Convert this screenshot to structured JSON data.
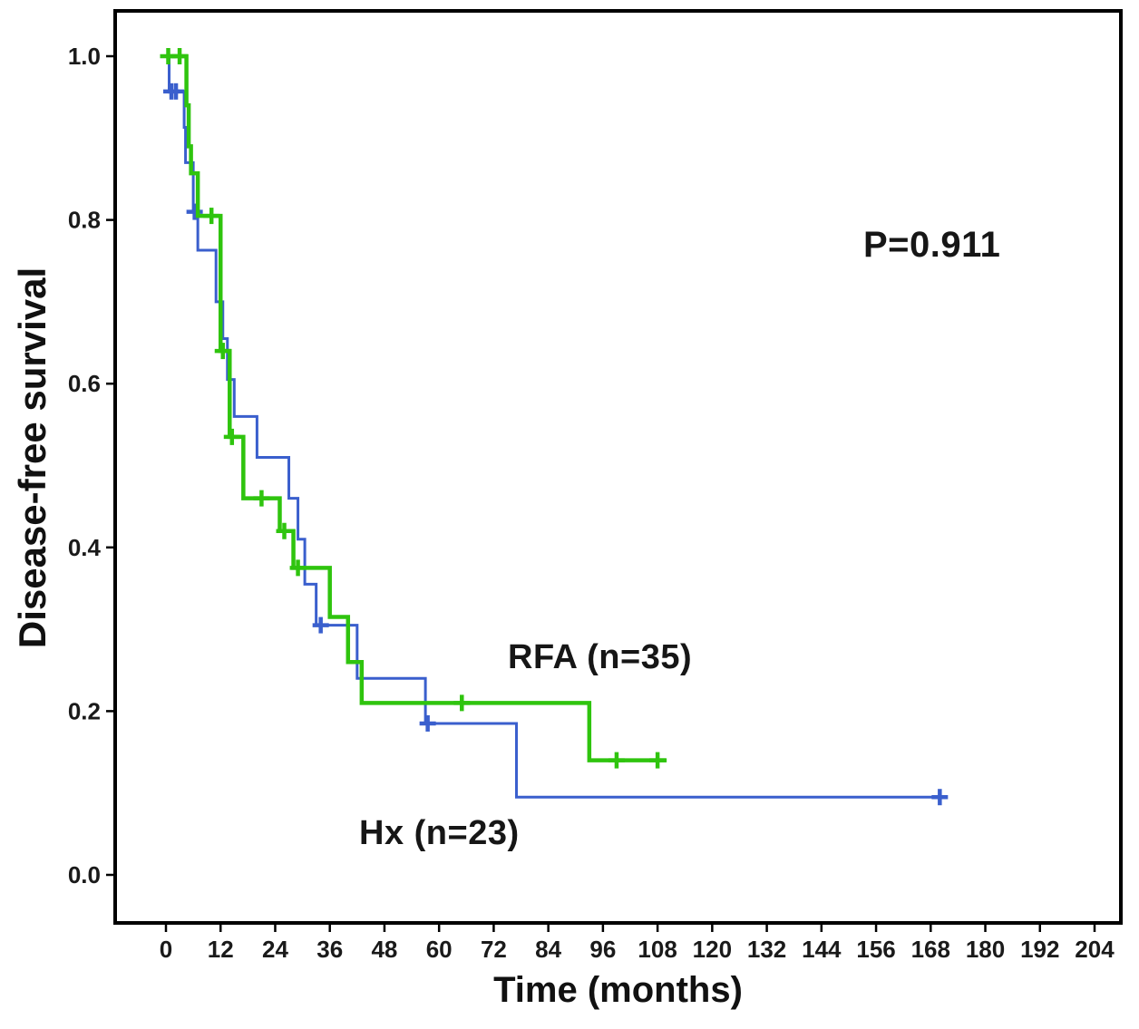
{
  "chart_data": {
    "type": "line",
    "subtype": "kaplan-meier-step",
    "title": "",
    "xlabel": "Time (months)",
    "ylabel": "Disease-free survival",
    "xlim": [
      0,
      204
    ],
    "ylim": [
      0.0,
      1.0
    ],
    "grid": false,
    "legend_position": "inline-labels",
    "x_ticks": [
      0,
      12,
      24,
      36,
      48,
      60,
      72,
      84,
      96,
      108,
      120,
      132,
      144,
      156,
      168,
      180,
      192,
      204
    ],
    "y_ticks": [
      0.0,
      0.2,
      0.4,
      0.6,
      0.8,
      1.0
    ],
    "y_tick_labels": [
      "0.0",
      "0.2",
      "0.4",
      "0.6",
      "0.8",
      "1.0"
    ],
    "annotations": [
      {
        "text": "P=0.911",
        "x": 160,
        "y": 0.78
      },
      {
        "text": "RFA (n=35)",
        "x": 76,
        "y": 0.26
      },
      {
        "text": "Hx (n=23)",
        "x": 43,
        "y": 0.05
      }
    ],
    "series": [
      {
        "name": "RFA (n=35)",
        "color": "#2fc40e",
        "line_width": 4.5,
        "points": [
          [
            0,
            1.0
          ],
          [
            4.5,
            1.0
          ],
          [
            4.5,
            0.94
          ],
          [
            5,
            0.94
          ],
          [
            5,
            0.89
          ],
          [
            5.5,
            0.89
          ],
          [
            5.5,
            0.857
          ],
          [
            7,
            0.857
          ],
          [
            7,
            0.805
          ],
          [
            12,
            0.805
          ],
          [
            12,
            0.64
          ],
          [
            14,
            0.64
          ],
          [
            14,
            0.535
          ],
          [
            17,
            0.535
          ],
          [
            17,
            0.46
          ],
          [
            25,
            0.46
          ],
          [
            25,
            0.42
          ],
          [
            28,
            0.42
          ],
          [
            28,
            0.375
          ],
          [
            36,
            0.375
          ],
          [
            36,
            0.315
          ],
          [
            40,
            0.315
          ],
          [
            40,
            0.26
          ],
          [
            43,
            0.26
          ],
          [
            43,
            0.21
          ],
          [
            93,
            0.21
          ],
          [
            93,
            0.14
          ],
          [
            110,
            0.14
          ]
        ],
        "censors": [
          [
            0.5,
            1.0
          ],
          [
            3,
            1.0
          ],
          [
            10,
            0.805
          ],
          [
            12.5,
            0.64
          ],
          [
            14.5,
            0.535
          ],
          [
            21,
            0.46
          ],
          [
            26,
            0.42
          ],
          [
            29,
            0.375
          ],
          [
            65,
            0.21
          ],
          [
            99,
            0.14
          ],
          [
            108,
            0.14
          ]
        ]
      },
      {
        "name": "Hx (n=23)",
        "color": "#3a5fcd",
        "line_width": 3,
        "points": [
          [
            0,
            1.0
          ],
          [
            0.7,
            1.0
          ],
          [
            0.7,
            0.957
          ],
          [
            4,
            0.957
          ],
          [
            4,
            0.913
          ],
          [
            4.3,
            0.913
          ],
          [
            4.3,
            0.87
          ],
          [
            6,
            0.87
          ],
          [
            6,
            0.81
          ],
          [
            7,
            0.81
          ],
          [
            7,
            0.763
          ],
          [
            11,
            0.763
          ],
          [
            11,
            0.7
          ],
          [
            12.5,
            0.7
          ],
          [
            12.5,
            0.655
          ],
          [
            13.5,
            0.655
          ],
          [
            13.5,
            0.605
          ],
          [
            15,
            0.605
          ],
          [
            15,
            0.56
          ],
          [
            20,
            0.56
          ],
          [
            20,
            0.51
          ],
          [
            27,
            0.51
          ],
          [
            27,
            0.46
          ],
          [
            29,
            0.46
          ],
          [
            29,
            0.41
          ],
          [
            30.5,
            0.41
          ],
          [
            30.5,
            0.355
          ],
          [
            33,
            0.355
          ],
          [
            33,
            0.305
          ],
          [
            42,
            0.305
          ],
          [
            42,
            0.24
          ],
          [
            57,
            0.24
          ],
          [
            57,
            0.185
          ],
          [
            77,
            0.185
          ],
          [
            77,
            0.095
          ],
          [
            171,
            0.095
          ]
        ],
        "censors": [
          [
            1.2,
            0.957
          ],
          [
            2.2,
            0.957
          ],
          [
            6.3,
            0.81
          ],
          [
            34,
            0.305
          ],
          [
            57.5,
            0.185
          ],
          [
            170,
            0.095
          ]
        ]
      }
    ]
  }
}
